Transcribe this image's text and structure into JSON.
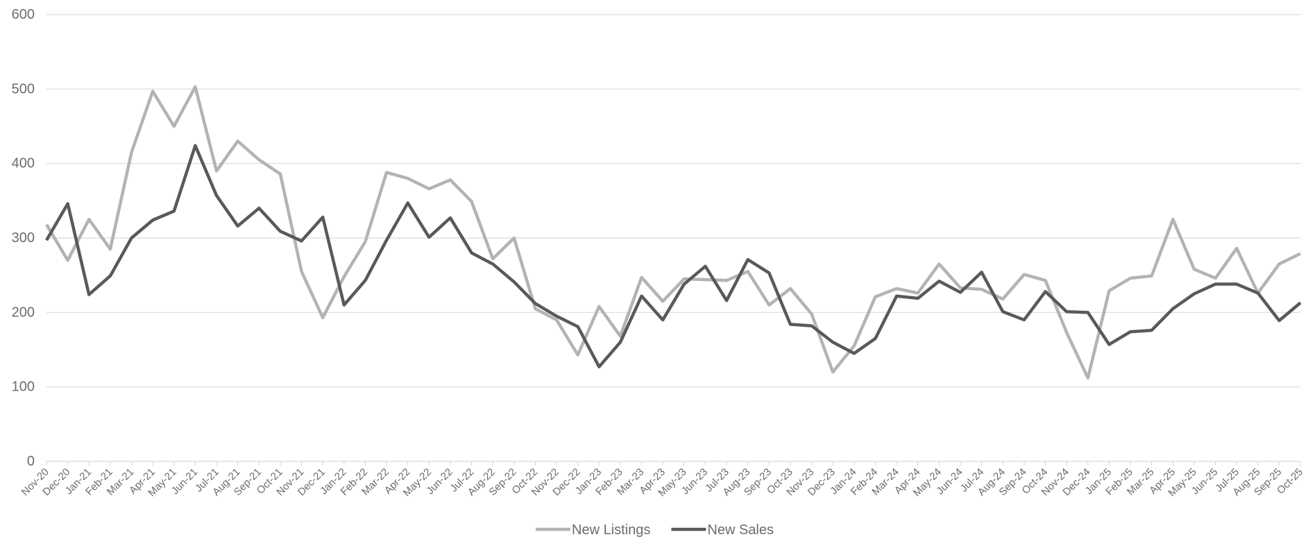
{
  "chart_data": {
    "type": "line",
    "categories": [
      "Nov-20",
      "Dec-20",
      "Jan-21",
      "Feb-21",
      "Mar-21",
      "Apr-21",
      "May-21",
      "Jun-21",
      "Jul-21",
      "Aug-21",
      "Sep-21",
      "Oct-21",
      "Nov-21",
      "Dec-21",
      "Jan-22",
      "Feb-22",
      "Mar-22",
      "Apr-22",
      "May-22",
      "Jun-22",
      "Jul-22",
      "Aug-22",
      "Sep-22",
      "Oct-22",
      "Nov-22",
      "Dec-22",
      "Jan-23",
      "Feb-23",
      "Mar-23",
      "Apr-23",
      "May-23",
      "Jun-23",
      "Jul-23",
      "Aug-23",
      "Sep-23",
      "Oct-23",
      "Nov-23",
      "Dec-23",
      "Jan-24",
      "Feb-24",
      "Mar-24",
      "Apr-24",
      "May-24",
      "Jun-24",
      "Jul-24",
      "Aug-24",
      "Sep-24",
      "Oct-24",
      "Nov-24",
      "Dec-24",
      "Jan-25",
      "Feb-25",
      "Mar-25",
      "Apr-25",
      "May-25",
      "Jun-25",
      "Jul-25",
      "Aug-25",
      "Sep-25",
      "Oct-25"
    ],
    "series": [
      {
        "name": "New Listings",
        "color": "#b3b3b3",
        "values": [
          318,
          270,
          325,
          285,
          415,
          497,
          450,
          503,
          390,
          430,
          405,
          386,
          255,
          193,
          248,
          295,
          388,
          380,
          366,
          378,
          349,
          272,
          300,
          205,
          190,
          143,
          208,
          168,
          247,
          215,
          245,
          244,
          243,
          255,
          210,
          232,
          198,
          120,
          155,
          221,
          232,
          226,
          265,
          233,
          231,
          218,
          251,
          243,
          173,
          112,
          229,
          246,
          249,
          325,
          258,
          246,
          286,
          226,
          265,
          279
        ]
      },
      {
        "name": "New Sales",
        "color": "#595959",
        "values": [
          297,
          346,
          224,
          249,
          300,
          324,
          336,
          424,
          357,
          316,
          340,
          309,
          296,
          328,
          210,
          243,
          297,
          347,
          301,
          327,
          280,
          265,
          241,
          212,
          195,
          181,
          127,
          160,
          222,
          190,
          238,
          262,
          216,
          271,
          253,
          184,
          182,
          160,
          145,
          165,
          222,
          219,
          242,
          227,
          254,
          201,
          190,
          228,
          201,
          200,
          157,
          174,
          176,
          205,
          225,
          238,
          238,
          226,
          189,
          213
        ]
      }
    ],
    "ylim": [
      0,
      600
    ],
    "yticks": [
      0,
      100,
      200,
      300,
      400,
      500,
      600
    ],
    "grid": true,
    "legend": "bottom"
  }
}
